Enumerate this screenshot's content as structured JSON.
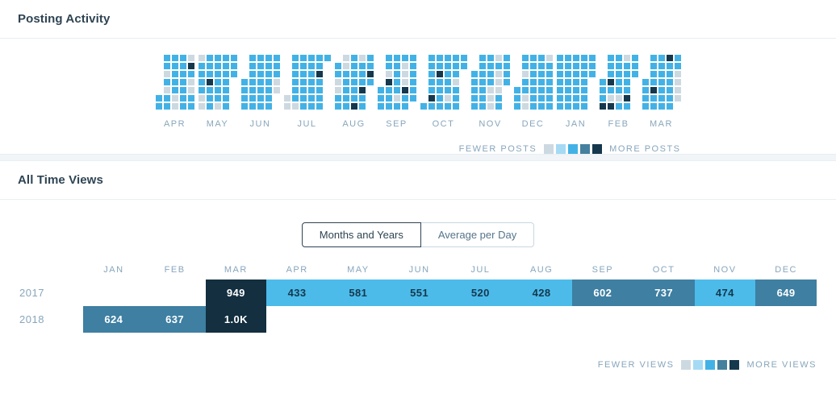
{
  "palette": {
    "cal-blue": "#42b2e6",
    "cal-gray": "#cdd9e1",
    "cal-dark": "#15384d",
    "views-blue": "#4cbbea",
    "views-steel": "#3e7fa2",
    "views-dark": "#132f40",
    "text-dark": "#2e4453",
    "text-muted": "#87a6bc",
    "border": "#e8eef2",
    "band-bg": "#f1f5f8",
    "toggle-inactive-border": "#c8d7e1",
    "toggle-inactive-text": "#56748a"
  },
  "legend_swatches": [
    "#cdd9e1",
    "#a5daf5",
    "#42b2e6",
    "#45809e",
    "#15384d"
  ],
  "posting_activity": {
    "title": "Posting Activity",
    "legend_fewer": "FEWER POSTS",
    "legend_more": "MORE POSTS",
    "months": [
      {
        "label": "APR",
        "grid": [
          ".bbbg",
          ".bbbd",
          ".gbbb",
          ".bbbg",
          ".gbbg",
          "bbgbb",
          "bbgbb"
        ]
      },
      {
        "label": "MAY",
        "grid": [
          "gbbbb",
          "bbbbb",
          "bbbbb",
          "bdbb.",
          "bbbb.",
          "gbbb.",
          "gbgb."
        ]
      },
      {
        "label": "JUN",
        "grid": [
          ".bbbb",
          ".bbbb",
          ".bbbb",
          "bbbbg",
          "bbbbg",
          "bbbb.",
          "bbbb."
        ]
      },
      {
        "label": "JUL",
        "grid": [
          ".bbbbb",
          ".bbbb.",
          ".bbbd.",
          ".bbbb.",
          ".bbbb.",
          "gbbbb.",
          "ggbbb."
        ]
      },
      {
        "label": "AUG",
        "grid": [
          ".gbgb",
          "bgbbb",
          "bbbbd",
          "gbbbb",
          "gbbd.",
          "bbbb.",
          "bbdb."
        ]
      },
      {
        "label": "SEP",
        "grid": [
          ".bbbb",
          ".bbgb",
          ".gbgb",
          ".dbgb",
          "bbbdb",
          "bbgbb",
          "bbbb."
        ]
      },
      {
        "label": "OCT",
        "grid": [
          ".bbbbb",
          ".bbbbb",
          ".bdbb.",
          ".bbbg.",
          ".bbbb.",
          ".dbgb.",
          "bbbbb."
        ]
      },
      {
        "label": "NOV",
        "grid": [
          ".bbgb",
          ".bbbb",
          "bbbgb",
          "bbbgb",
          "bbgg.",
          "bbgb.",
          "bbgb."
        ]
      },
      {
        "label": "DEC",
        "grid": [
          ".bbbg",
          ".bbbb",
          ".gbbb",
          ".bbbb",
          "bbbbb",
          "bgbbb",
          "bgbbb"
        ]
      },
      {
        "label": "JAN",
        "grid": [
          "bbbbb",
          "bbbbb",
          "bbbbb",
          "bbbb.",
          "bbbb.",
          "bbbb.",
          "bbbb."
        ]
      },
      {
        "label": "FEB",
        "grid": [
          ".bbgb",
          ".bbbb",
          ".bbbb",
          "bdbb.",
          "bbbb.",
          "bggd.",
          "ddbb."
        ]
      },
      {
        "label": "MAR",
        "grid": [
          ".bbdb",
          ".bbbb",
          ".bbbg",
          "bbbbg",
          "bdbbg",
          "bbbbg",
          "bbbb."
        ]
      }
    ]
  },
  "all_time_views": {
    "title": "All Time Views",
    "toggle": {
      "active_label": "Months and Years",
      "inactive_label": "Average per Day"
    },
    "legend_fewer": "FEWER VIEWS",
    "legend_more": "MORE VIEWS",
    "table": {
      "months": [
        "JAN",
        "FEB",
        "MAR",
        "APR",
        "MAY",
        "JUN",
        "JUL",
        "AUG",
        "SEP",
        "OCT",
        "NOV",
        "DEC"
      ],
      "rows": [
        {
          "year": "2017",
          "cells": [
            null,
            null,
            {
              "value": "949",
              "level": "dark"
            },
            {
              "value": "433",
              "level": "blue"
            },
            {
              "value": "581",
              "level": "blue"
            },
            {
              "value": "551",
              "level": "blue"
            },
            {
              "value": "520",
              "level": "blue"
            },
            {
              "value": "428",
              "level": "blue"
            },
            {
              "value": "602",
              "level": "steel"
            },
            {
              "value": "737",
              "level": "steel"
            },
            {
              "value": "474",
              "level": "blue"
            },
            {
              "value": "649",
              "level": "steel"
            }
          ]
        },
        {
          "year": "2018",
          "cells": [
            {
              "value": "624",
              "level": "steel"
            },
            {
              "value": "637",
              "level": "steel"
            },
            {
              "value": "1.0K",
              "level": "dark"
            },
            null,
            null,
            null,
            null,
            null,
            null,
            null,
            null,
            null
          ]
        }
      ]
    }
  },
  "chart_data": {
    "type": "heatmap",
    "title": "All Time Views - Months and Years",
    "categories": [
      "JAN",
      "FEB",
      "MAR",
      "APR",
      "MAY",
      "JUN",
      "JUL",
      "AUG",
      "SEP",
      "OCT",
      "NOV",
      "DEC"
    ],
    "series": [
      {
        "name": "2017",
        "values": [
          null,
          null,
          949,
          433,
          581,
          551,
          520,
          428,
          602,
          737,
          474,
          649
        ]
      },
      {
        "name": "2018",
        "values": [
          624,
          637,
          1000,
          null,
          null,
          null,
          null,
          null,
          null,
          null,
          null,
          null
        ]
      }
    ]
  }
}
